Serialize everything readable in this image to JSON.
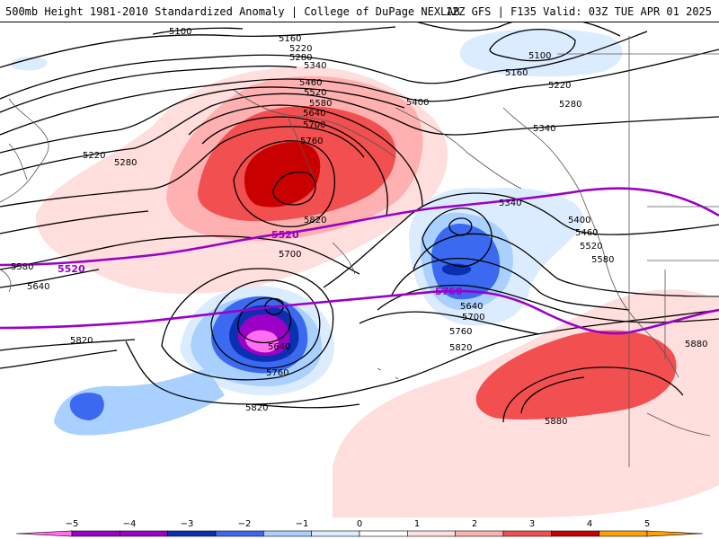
{
  "header": {
    "title": "500mb Height 1981-2010 Standardized Anomaly | College of DuPage NEXLAB",
    "run_info": "12Z GFS | F135 Valid: 03Z TUE APR 01 2025"
  },
  "colors": {
    "a_neg5": "#ff6ef0",
    "a_neg45": "#9a00c8",
    "a_neg4": "#0a2fb0",
    "a_neg3": "#3b6af0",
    "a_neg2": "#a9d0ff",
    "a_neg1": "#dcecff",
    "a_pos1": "#ffdede",
    "a_pos2": "#ffb0b0",
    "a_pos3": "#f25050",
    "a_pos4": "#c80000",
    "a_pos5": "#ff9f00",
    "contour": "#000000",
    "highlight_contour": "#9a00c8",
    "coastline": "#555555"
  },
  "contour_labels": {
    "c5100a": "5100",
    "c5100b": "5100",
    "c5160a": "5160",
    "c5160b": "5160",
    "c5220a": "5220",
    "c5220b": "5220",
    "c5220c": "5220",
    "c5280a": "5280",
    "c5280b": "5280",
    "c5280c": "5280",
    "c5340a": "5340",
    "c5340b": "5340",
    "c5340c": "5340",
    "c5400a": "5400",
    "c5400b": "5400",
    "c5460a": "5460",
    "c5460b": "5460",
    "c5520a": "5520",
    "c5520b": "5520",
    "c5580a": "5580",
    "c5580b": "5580",
    "c5580c": "5580",
    "c5640a": "5640",
    "c5640b": "5640",
    "c5640c": "5640",
    "c5640d": "5640",
    "c5700a": "5700",
    "c5700b": "5700",
    "c5700c": "5700",
    "c5760a": "5760",
    "c5760b": "5760",
    "c5760c": "5760",
    "c5820a": "5820",
    "c5820b": "5820",
    "c5820c": "5820",
    "c5820d": "5820",
    "c5880a": "5880",
    "c5880b": "5880"
  },
  "highlight_labels": {
    "h5520a": "5520",
    "h5520b": "5520",
    "h5760": "5760"
  },
  "colorbar": {
    "ticks": [
      "−5",
      "−4",
      "−3",
      "−2",
      "−1",
      "0",
      "1",
      "2",
      "3",
      "4",
      "5"
    ]
  }
}
